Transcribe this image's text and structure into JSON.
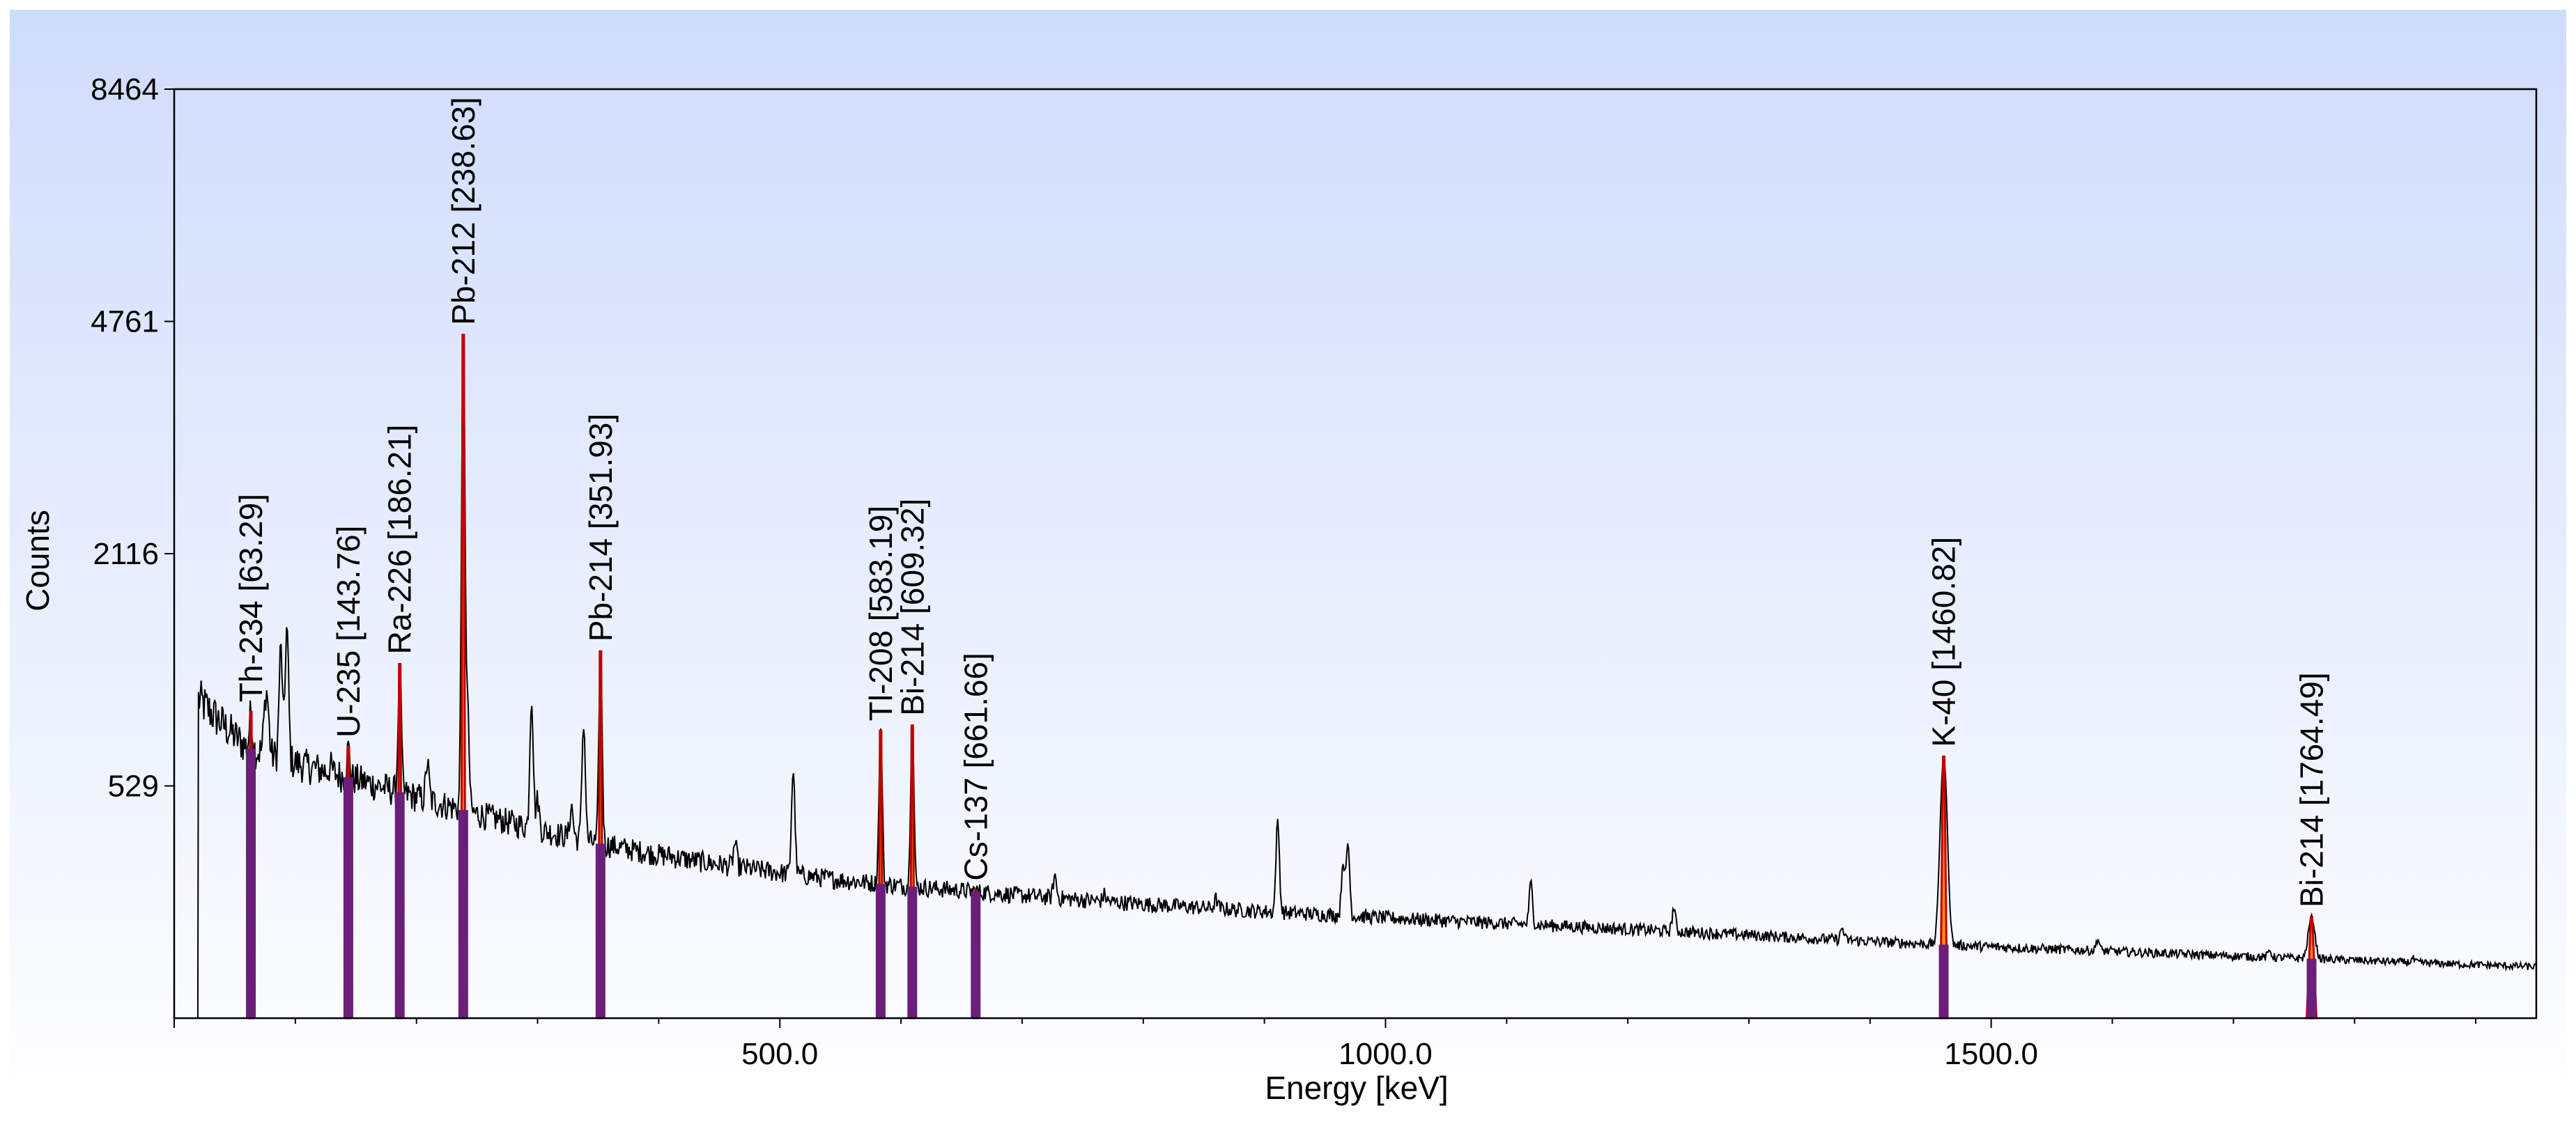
{
  "chart_data": {
    "type": "line",
    "title": "",
    "xlabel": "Energy [keV]",
    "ylabel": "Counts",
    "xlim": [
      0,
      1950
    ],
    "y_scale": "sqrt",
    "ylim": [
      0,
      8464
    ],
    "x_ticks": [
      {
        "value": 500,
        "label": "500.0"
      },
      {
        "value": 1000,
        "label": "1000.0"
      },
      {
        "value": 1500,
        "label": "1500.0"
      }
    ],
    "y_ticks": [
      {
        "value": 529,
        "label": "529"
      },
      {
        "value": 2116,
        "label": "2116"
      },
      {
        "value": 4761,
        "label": "4761"
      },
      {
        "value": 8464,
        "label": "8464"
      }
    ],
    "colors": {
      "background_top": "#cfdcfb",
      "background_bottom": "#ffffff",
      "spectrum": "#000000",
      "peak_line": "#c00000",
      "peak_fill": "#ff8c00",
      "marker": "#6b1f7a"
    },
    "spectrum_points": [
      [
        20,
        1000
      ],
      [
        60,
        720
      ],
      [
        100,
        640
      ],
      [
        150,
        560
      ],
      [
        200,
        480
      ],
      [
        250,
        410
      ],
      [
        300,
        350
      ],
      [
        350,
        300
      ],
      [
        400,
        262
      ],
      [
        450,
        232
      ],
      [
        500,
        208
      ],
      [
        550,
        188
      ],
      [
        600,
        172
      ],
      [
        650,
        160
      ],
      [
        700,
        148
      ],
      [
        800,
        128
      ],
      [
        900,
        112
      ],
      [
        1000,
        99
      ],
      [
        1100,
        88
      ],
      [
        1200,
        78
      ],
      [
        1300,
        68
      ],
      [
        1400,
        58
      ],
      [
        1500,
        50
      ],
      [
        1600,
        44
      ],
      [
        1700,
        38
      ],
      [
        1800,
        33
      ],
      [
        1900,
        28
      ],
      [
        1950,
        26
      ]
    ],
    "minor_peaks": [
      {
        "energy": 75,
        "counts": 900
      },
      {
        "energy": 77,
        "counts": 950
      },
      {
        "energy": 88,
        "counts": 1350
      },
      {
        "energy": 93,
        "counts": 1500
      },
      {
        "energy": 129,
        "counts": 620
      },
      {
        "energy": 209,
        "counts": 640
      },
      {
        "energy": 242,
        "counts": 980
      },
      {
        "energy": 270,
        "counts": 300
      },
      {
        "energy": 295,
        "counts": 1000
      },
      {
        "energy": 300,
        "counts": 470
      },
      {
        "energy": 328,
        "counts": 440
      },
      {
        "energy": 338,
        "counts": 850
      },
      {
        "energy": 409,
        "counts": 260
      },
      {
        "energy": 463,
        "counts": 300
      },
      {
        "energy": 511,
        "counts": 600
      },
      {
        "energy": 727,
        "counts": 200
      },
      {
        "energy": 768,
        "counts": 150
      },
      {
        "energy": 795,
        "counts": 110
      },
      {
        "energy": 860,
        "counts": 140
      },
      {
        "energy": 911,
        "counts": 380
      },
      {
        "energy": 965,
        "counts": 240
      },
      {
        "energy": 969,
        "counts": 300
      },
      {
        "energy": 1120,
        "counts": 180
      },
      {
        "energy": 1238,
        "counts": 120
      },
      {
        "energy": 1377,
        "counts": 80
      },
      {
        "energy": 1588,
        "counts": 62
      },
      {
        "energy": 1730,
        "counts": 45
      },
      {
        "energy": 1848,
        "counts": 35
      }
    ],
    "identified_peaks": [
      {
        "label": "Th-234 [63.29]",
        "energy": 63.29,
        "counts": 920
      },
      {
        "label": "U-235 [143.76]",
        "energy": 143.76,
        "counts": 720
      },
      {
        "label": "Ra-226 [186.21]",
        "energy": 186.21,
        "counts": 1230
      },
      {
        "label": "Pb-212 [238.63]",
        "energy": 238.63,
        "counts": 4580
      },
      {
        "label": "Pb-214 [351.93]",
        "energy": 351.93,
        "counts": 1320
      },
      {
        "label": "Tl-208 [583.19]",
        "energy": 583.19,
        "counts": 810
      },
      {
        "label": "Bi-214 [609.32]",
        "energy": 609.32,
        "counts": 840
      },
      {
        "label": "Cs-137 [661.66]",
        "energy": 661.66,
        "counts": 160
      },
      {
        "label": "K-40 [1460.82]",
        "energy": 1460.82,
        "counts": 670
      },
      {
        "label": "Bi-214 [1764.49]",
        "energy": 1764.49,
        "counts": 100
      }
    ]
  }
}
